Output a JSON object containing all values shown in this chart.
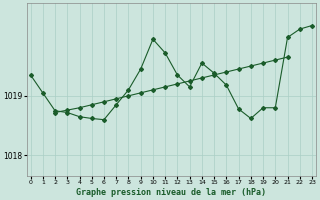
{
  "xlabel": "Graphe pression niveau de la mer (hPa)",
  "background_color": "#cce5dd",
  "grid_color": "#aacfc5",
  "line_color": "#1a5c2a",
  "x_ticks": [
    0,
    1,
    2,
    3,
    4,
    5,
    6,
    7,
    8,
    9,
    10,
    11,
    12,
    13,
    14,
    15,
    16,
    17,
    18,
    19,
    20,
    21,
    22,
    23
  ],
  "y_ticks": [
    1018,
    1019
  ],
  "ylim": [
    1017.65,
    1020.55
  ],
  "xlim": [
    -0.3,
    23.3
  ],
  "series1_x": [
    0,
    1,
    2,
    3,
    4,
    5,
    6,
    7,
    8,
    9,
    10,
    11,
    12,
    13,
    14,
    15,
    16,
    17,
    18,
    19,
    20,
    21,
    22,
    23
  ],
  "series1_y": [
    1019.35,
    1019.05,
    1018.75,
    1018.72,
    1018.65,
    1018.62,
    1018.6,
    1018.85,
    1019.1,
    1019.45,
    1019.95,
    1019.72,
    1019.35,
    1019.15,
    1019.55,
    1019.38,
    1019.18,
    1018.78,
    1018.62,
    1018.8,
    1018.8,
    1019.98,
    1020.12,
    1020.18
  ],
  "series2_x": [
    2,
    3,
    4,
    5,
    6,
    7,
    8,
    9,
    10,
    11,
    12,
    13,
    14,
    15,
    16,
    17,
    18,
    19,
    20,
    21
  ],
  "series2_y": [
    1018.72,
    1018.76,
    1018.8,
    1018.85,
    1018.9,
    1018.95,
    1019.0,
    1019.05,
    1019.1,
    1019.15,
    1019.2,
    1019.25,
    1019.3,
    1019.35,
    1019.4,
    1019.45,
    1019.5,
    1019.55,
    1019.6,
    1019.65
  ]
}
